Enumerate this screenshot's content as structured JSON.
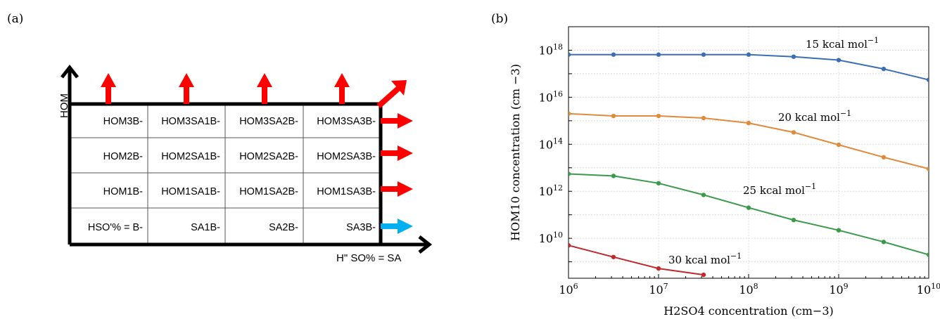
{
  "panel_a": {
    "label": "(a)",
    "y_axis_label": "HOM",
    "x_axis_label": "H\" SO% = SA",
    "grid": [
      [
        "HOM3B-",
        "HOM3SA1B-",
        "HOM3SA2B-",
        "HOM3SA3B-"
      ],
      [
        "HOM2B-",
        "HOM2SA1B-",
        "HOM2SA2B-",
        "HOM2SA3B-"
      ],
      [
        "HOM1B-",
        "HOM1SA1B-",
        "HOM1SA2B-",
        "HOM1SA3B-"
      ],
      [
        "HSO'% = B-",
        "SA1B-",
        "SA2B-",
        "SA3B-"
      ]
    ],
    "colors": {
      "arrow_out": "#ff0000",
      "arrow_sa": "#00b0f0",
      "axis": "#000000"
    }
  },
  "panel_b": {
    "label": "(b)",
    "ylabel": "HOM10 concentration (cm −3)",
    "xlabel": "H2SO4 concentration (cm−3)",
    "x_tick_labels": [
      "10^6",
      "10^7",
      "10^8",
      "10^9",
      "10^10"
    ],
    "y_tick_labels": [
      "10^10",
      "10^12",
      "10^14",
      "10^16",
      "10^18"
    ],
    "series_labels": [
      "15 kcal mol−1",
      "20 kcal mol−1",
      "25 kcal mol−1",
      "30 kcal mol−1"
    ]
  },
  "chart_data": {
    "type": "line",
    "xscale": "log",
    "yscale": "log",
    "xlim": [
      1000000,
      10000000000
    ],
    "ylim": [
      200000000,
      1e+19
    ],
    "grid": true,
    "xlabel": "H2SO4 concentration (cm−3)",
    "ylabel": "HOM10 concentration (cm −3)",
    "series": [
      {
        "name": "15 kcal mol−1",
        "color": "#3c6eb4",
        "x": [
          1000000.0,
          3160000.0,
          10000000.0,
          31600000.0,
          100000000.0,
          316000000.0,
          1000000000.0,
          3160000000.0,
          10000000000.0
        ],
        "y": [
          6.5e+17,
          6.5e+17,
          6.5e+17,
          6.5e+17,
          6.5e+17,
          5.3e+17,
          3.8e+17,
          1.6e+17,
          5.5e+16
        ]
      },
      {
        "name": "20 kcal mol−1",
        "color": "#e08a3c",
        "x": [
          1000000.0,
          3160000.0,
          10000000.0,
          31600000.0,
          100000000.0,
          316000000.0,
          1000000000.0,
          3160000000.0,
          10000000000.0
        ],
        "y": [
          2000000000000000.0,
          1600000000000000.0,
          1600000000000000.0,
          1300000000000000.0,
          800000000000000.0,
          320000000000000.0,
          95000000000000.0,
          28000000000000.0,
          9000000000000.0
        ]
      },
      {
        "name": "25 kcal mol−1",
        "color": "#3a9a4a",
        "x": [
          1000000.0,
          3160000.0,
          10000000.0,
          31600000.0,
          100000000.0,
          316000000.0,
          1000000000.0,
          3160000000.0,
          10000000000.0
        ],
        "y": [
          5500000000000.0,
          4500000000000.0,
          2200000000000.0,
          700000000000.0,
          200000000000.0,
          60000000000.0,
          22000000000.0,
          7000000000.0,
          2000000000.0
        ]
      },
      {
        "name": "30 kcal mol−1",
        "color": "#c0282d",
        "x": [
          1000000.0,
          3160000.0,
          10000000.0,
          31600000.0
        ],
        "y": [
          5000000000.0,
          1600000000.0,
          520000000.0,
          280000000.0
        ]
      }
    ]
  }
}
